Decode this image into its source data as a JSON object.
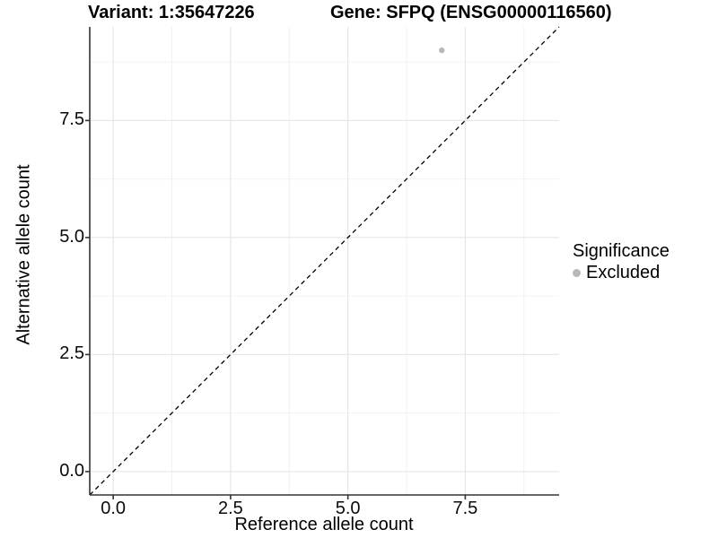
{
  "chart_data": {
    "type": "scatter",
    "title_left": "Variant: 1:35647226",
    "title_right": "Gene: SFPQ (ENSG00000116560)",
    "xlabel": "Reference allele count",
    "ylabel": "Alternative allele count",
    "xlim": [
      -0.5,
      9.5
    ],
    "ylim": [
      -0.5,
      9.5
    ],
    "xticks": [
      0.0,
      2.5,
      5.0,
      7.5
    ],
    "yticks": [
      0.0,
      2.5,
      5.0,
      7.5
    ],
    "minor_tick_offset": 1.25,
    "grid": true,
    "tick_label_format": "one_decimal",
    "reference_line": {
      "type": "diagonal",
      "slope": 1,
      "intercept": 0,
      "style": "dashed",
      "color": "#000000"
    },
    "series": [
      {
        "name": "Excluded",
        "color": "#b8b8b8",
        "points": [
          {
            "x": 7,
            "y": 9,
            "significance": "Excluded"
          }
        ]
      }
    ],
    "legend": {
      "title": "Significance",
      "position": "right",
      "entries": [
        {
          "label": "Excluded",
          "color": "#b8b8b8"
        }
      ]
    },
    "colors": {
      "background": "#ffffff",
      "grid_major": "#e8e8e8",
      "grid_minor": "#f0f0f0",
      "axis_line": "#333333",
      "tick_mark": "#333333",
      "point": "#b8b8b8",
      "text": "#000000"
    }
  }
}
